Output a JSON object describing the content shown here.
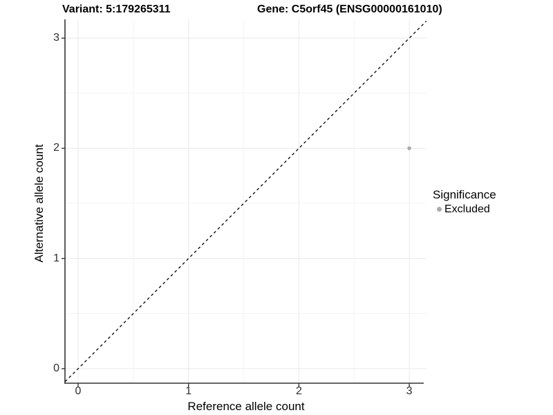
{
  "header": {
    "variant_title": "Variant: 5:179265311",
    "gene_title": "Gene: C5orf45 (ENSG00000161010)"
  },
  "chart_data": {
    "type": "scatter",
    "xlabel": "Reference allele count",
    "ylabel": "Alternative allele count",
    "x_ticks": [
      "0",
      "1",
      "2",
      "3"
    ],
    "x_tick_values": [
      0,
      1,
      2,
      3
    ],
    "y_ticks": [
      "0",
      "1",
      "2",
      "3"
    ],
    "y_tick_values": [
      0,
      1,
      2,
      3
    ],
    "x_minor_tick_values": [
      0.5,
      1.5,
      2.5
    ],
    "y_minor_tick_values": [
      0.5,
      1.5,
      2.5
    ],
    "xlim": [
      -0.118,
      3.155
    ],
    "ylim": [
      -0.132,
      3.17
    ],
    "grid": "major+minor",
    "reference_line": {
      "kind": "identity y=x",
      "style": "dashed",
      "x": [
        -0.118,
        3.155
      ],
      "y": [
        -0.118,
        3.155
      ]
    },
    "series": [
      {
        "name": "Excluded",
        "color": "#ababab",
        "points": [
          {
            "x": 3,
            "y": 2
          }
        ]
      }
    ],
    "legend": {
      "title": "Significance",
      "position": "right",
      "entries": [
        {
          "label": "Excluded",
          "color": "#ababab"
        }
      ]
    }
  },
  "colors": {
    "background": "#ffffff",
    "axis_line": "#333333",
    "tick_label": "#2e2e2e",
    "grid_major": "#e8e8e8",
    "grid_minor": "#f3f3f3",
    "reference_line": "#000000",
    "point": "#ababab"
  }
}
